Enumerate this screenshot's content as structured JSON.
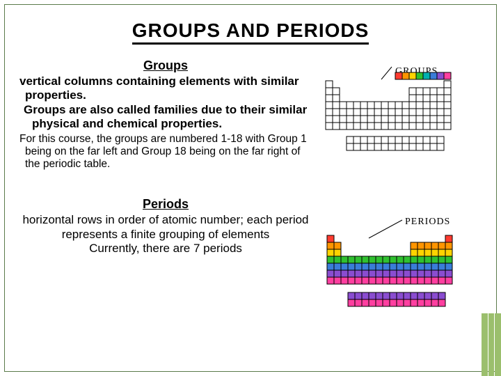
{
  "title": "GROUPS AND PERIODS",
  "groups_section": {
    "heading": "Groups",
    "para1": "vertical columns containing elements with similar properties.",
    "para2": "Groups are also called families due to their similar physical and chemical properties.",
    "para3": "For this course, the groups are numbered 1-18 with Group 1 being on the far left and Group 18 being on the far right of the periodic table."
  },
  "periods_section": {
    "heading": "Periods",
    "para1": "horizontal rows in order of atomic number; each period represents a finite grouping of elements",
    "para2": "Currently, there are 7 periods"
  },
  "diagrams": {
    "groups_label": "GROUPS",
    "periods_label": "PERIODS",
    "cell_size": 10,
    "border_color": "#000000",
    "bg_white": "#ffffff",
    "group_colors": [
      "#ff3b30",
      "#ff9500",
      "#ffd400",
      "#30c030",
      "#00b0b0",
      "#3a7dd8",
      "#8a4dd0",
      "#ff3fa0"
    ],
    "period_colors": [
      "#ff3b30",
      "#ff9500",
      "#ffd400",
      "#30c030",
      "#3a7dd8",
      "#8a4dd0",
      "#ff3fa0"
    ],
    "accent_stripe_color": "#9bbf6d",
    "slide_border_color": "#5a7a4a"
  }
}
